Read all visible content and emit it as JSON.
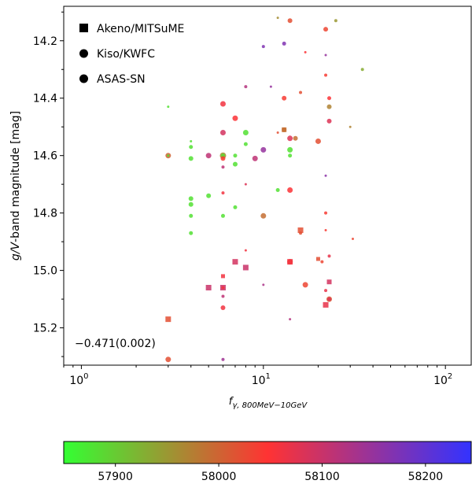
{
  "chart_data": {
    "type": "scatter",
    "title": "",
    "xlabel": "f_{γ,800MeV−10GeV}",
    "xlabel_main": "f",
    "xlabel_sub": "γ, 800MeV−10GeV",
    "ylabel": "g/V-band magnitude [mag]",
    "ylabel_italic": "g/V",
    "ylabel_rest": "-band magnitude [mag]",
    "xscale": "log",
    "xlim": [
      0.8,
      140
    ],
    "ylim": [
      15.33,
      14.08
    ],
    "y_inverted": true,
    "grid": false,
    "x_ticks": [
      {
        "value": 1,
        "label_base": "10",
        "label_exp": "0"
      },
      {
        "value": 10,
        "label_base": "10",
        "label_exp": "1"
      },
      {
        "value": 100,
        "label_base": "10",
        "label_exp": "2"
      }
    ],
    "y_ticks": [
      {
        "value": 14.2,
        "label": "14.2"
      },
      {
        "value": 14.4,
        "label": "14.4"
      },
      {
        "value": 14.6,
        "label": "14.6"
      },
      {
        "value": 14.8,
        "label": "14.8"
      },
      {
        "value": 15.0,
        "label": "15.0"
      },
      {
        "value": 15.2,
        "label": "15.2"
      }
    ],
    "annotation": "−0.471(0.002)",
    "legend": {
      "position": "top-left",
      "entries": [
        {
          "label": "Akeno/MITSuME",
          "marker": "square"
        },
        {
          "label": "Kiso/KWFC",
          "marker": "circle"
        },
        {
          "label": "ASAS-SN",
          "marker": "circle"
        }
      ]
    },
    "colorbar": {
      "orientation": "horizontal",
      "range": [
        57850,
        58245
      ],
      "colors": [
        "#33ff33",
        "#ff3333",
        "#3333ff"
      ],
      "ticks": [
        {
          "value": 57900,
          "label": "57900"
        },
        {
          "value": 58000,
          "label": "58000"
        },
        {
          "value": 58100,
          "label": "58100"
        },
        {
          "value": 58200,
          "label": "58200"
        }
      ]
    },
    "points": [
      {
        "x": 3.0,
        "y": 15.17,
        "t": 58020,
        "m": "s",
        "size": 7
      },
      {
        "x": 3.0,
        "y": 15.31,
        "t": 58020,
        "m": "c",
        "size": 7
      },
      {
        "x": 3.0,
        "y": 14.6,
        "t": 58000,
        "m": "c",
        "size": 7
      },
      {
        "x": 3.0,
        "y": 14.43,
        "t": 57880,
        "m": "c",
        "size": 3
      },
      {
        "x": 3.0,
        "y": 14.6,
        "t": 57880,
        "m": "c",
        "size": 3
      },
      {
        "x": 4.0,
        "y": 14.55,
        "t": 57880,
        "m": "c",
        "size": 3
      },
      {
        "x": 4.0,
        "y": 14.57,
        "t": 57880,
        "m": "c",
        "size": 5
      },
      {
        "x": 4.0,
        "y": 14.61,
        "t": 57880,
        "m": "c",
        "size": 6
      },
      {
        "x": 4.0,
        "y": 14.75,
        "t": 57880,
        "m": "c",
        "size": 6
      },
      {
        "x": 4.0,
        "y": 14.77,
        "t": 57880,
        "m": "c",
        "size": 6
      },
      {
        "x": 4.0,
        "y": 14.81,
        "t": 57880,
        "m": "c",
        "size": 5
      },
      {
        "x": 4.0,
        "y": 14.87,
        "t": 57880,
        "m": "c",
        "size": 5
      },
      {
        "x": 5.0,
        "y": 14.6,
        "t": 58110,
        "m": "c",
        "size": 7
      },
      {
        "x": 5.0,
        "y": 14.74,
        "t": 57880,
        "m": "c",
        "size": 6
      },
      {
        "x": 5.0,
        "y": 15.06,
        "t": 58100,
        "m": "s",
        "size": 7
      },
      {
        "x": 6.0,
        "y": 14.42,
        "t": 58060,
        "m": "c",
        "size": 7
      },
      {
        "x": 6.0,
        "y": 14.52,
        "t": 58090,
        "m": "c",
        "size": 7
      },
      {
        "x": 6.0,
        "y": 14.6,
        "t": 57960,
        "m": "c",
        "size": 8
      },
      {
        "x": 6.0,
        "y": 14.6,
        "t": 57880,
        "m": "c",
        "size": 5
      },
      {
        "x": 6.0,
        "y": 14.61,
        "t": 58040,
        "m": "c",
        "size": 6
      },
      {
        "x": 6.0,
        "y": 14.64,
        "t": 58110,
        "m": "c",
        "size": 4
      },
      {
        "x": 6.0,
        "y": 14.73,
        "t": 58060,
        "m": "c",
        "size": 4
      },
      {
        "x": 6.0,
        "y": 14.81,
        "t": 57880,
        "m": "c",
        "size": 5
      },
      {
        "x": 6.0,
        "y": 15.02,
        "t": 58060,
        "m": "s",
        "size": 5
      },
      {
        "x": 6.0,
        "y": 15.06,
        "t": 58100,
        "m": "s",
        "size": 7
      },
      {
        "x": 6.0,
        "y": 15.06,
        "t": 58060,
        "m": "c",
        "size": 4
      },
      {
        "x": 6.0,
        "y": 15.09,
        "t": 58110,
        "m": "c",
        "size": 4
      },
      {
        "x": 6.0,
        "y": 15.13,
        "t": 58060,
        "m": "c",
        "size": 6
      },
      {
        "x": 6.0,
        "y": 15.31,
        "t": 58140,
        "m": "c",
        "size": 4
      },
      {
        "x": 7.0,
        "y": 14.47,
        "t": 58050,
        "m": "c",
        "size": 7
      },
      {
        "x": 7.0,
        "y": 14.6,
        "t": 57880,
        "m": "c",
        "size": 5
      },
      {
        "x": 7.0,
        "y": 14.63,
        "t": 57880,
        "m": "c",
        "size": 6
      },
      {
        "x": 7.0,
        "y": 14.78,
        "t": 57880,
        "m": "c",
        "size": 5
      },
      {
        "x": 7.0,
        "y": 14.97,
        "t": 58090,
        "m": "s",
        "size": 7
      },
      {
        "x": 8.0,
        "y": 14.36,
        "t": 58120,
        "m": "c",
        "size": 4
      },
      {
        "x": 8.0,
        "y": 14.52,
        "t": 57880,
        "m": "c",
        "size": 7
      },
      {
        "x": 8.0,
        "y": 14.56,
        "t": 57880,
        "m": "c",
        "size": 5
      },
      {
        "x": 8.0,
        "y": 14.7,
        "t": 58080,
        "m": "c",
        "size": 3
      },
      {
        "x": 8.0,
        "y": 14.93,
        "t": 58060,
        "m": "c",
        "size": 3
      },
      {
        "x": 8.0,
        "y": 14.99,
        "t": 58100,
        "m": "s",
        "size": 7
      },
      {
        "x": 9.0,
        "y": 14.61,
        "t": 58110,
        "m": "c",
        "size": 7
      },
      {
        "x": 10.0,
        "y": 14.22,
        "t": 58170,
        "m": "c",
        "size": 4
      },
      {
        "x": 10.0,
        "y": 14.58,
        "t": 58150,
        "m": "c",
        "size": 7
      },
      {
        "x": 10.0,
        "y": 14.81,
        "t": 57990,
        "m": "c",
        "size": 7
      },
      {
        "x": 10.0,
        "y": 15.05,
        "t": 58130,
        "m": "c",
        "size": 3
      },
      {
        "x": 11.0,
        "y": 14.36,
        "t": 58150,
        "m": "c",
        "size": 3
      },
      {
        "x": 12.0,
        "y": 14.12,
        "t": 57960,
        "m": "c",
        "size": 3
      },
      {
        "x": 12.0,
        "y": 14.52,
        "t": 58020,
        "m": "c",
        "size": 3
      },
      {
        "x": 12.0,
        "y": 14.72,
        "t": 57880,
        "m": "c",
        "size": 5
      },
      {
        "x": 13.0,
        "y": 14.21,
        "t": 58170,
        "m": "c",
        "size": 5
      },
      {
        "x": 13.0,
        "y": 14.4,
        "t": 58040,
        "m": "c",
        "size": 6
      },
      {
        "x": 13.0,
        "y": 14.51,
        "t": 57990,
        "m": "c",
        "size": 6
      },
      {
        "x": 13.0,
        "y": 14.51,
        "t": 57990,
        "m": "s",
        "size": 6
      },
      {
        "x": 14.0,
        "y": 14.13,
        "t": 58020,
        "m": "c",
        "size": 6
      },
      {
        "x": 14.0,
        "y": 14.54,
        "t": 58080,
        "m": "c",
        "size": 7
      },
      {
        "x": 14.0,
        "y": 14.58,
        "t": 57880,
        "m": "c",
        "size": 7
      },
      {
        "x": 14.0,
        "y": 14.6,
        "t": 57880,
        "m": "c",
        "size": 5
      },
      {
        "x": 14.0,
        "y": 14.72,
        "t": 58050,
        "m": "c",
        "size": 7
      },
      {
        "x": 14.0,
        "y": 14.97,
        "t": 58040,
        "m": "c",
        "size": 7
      },
      {
        "x": 14.0,
        "y": 14.97,
        "t": 58060,
        "m": "s",
        "size": 7
      },
      {
        "x": 14.0,
        "y": 15.17,
        "t": 58120,
        "m": "c",
        "size": 3
      },
      {
        "x": 15.0,
        "y": 14.54,
        "t": 57990,
        "m": "c",
        "size": 6
      },
      {
        "x": 16.0,
        "y": 14.38,
        "t": 58020,
        "m": "c",
        "size": 4
      },
      {
        "x": 16.0,
        "y": 14.86,
        "t": 58020,
        "m": "s",
        "size": 7
      },
      {
        "x": 16.0,
        "y": 14.87,
        "t": 58020,
        "m": "c",
        "size": 4
      },
      {
        "x": 17.0,
        "y": 14.24,
        "t": 58050,
        "m": "c",
        "size": 3
      },
      {
        "x": 17.0,
        "y": 15.05,
        "t": 58030,
        "m": "c",
        "size": 7
      },
      {
        "x": 20.0,
        "y": 14.55,
        "t": 58020,
        "m": "c",
        "size": 7
      },
      {
        "x": 20.0,
        "y": 14.96,
        "t": 58020,
        "m": "s",
        "size": 5
      },
      {
        "x": 21.0,
        "y": 14.97,
        "t": 58030,
        "m": "c",
        "size": 4
      },
      {
        "x": 22.0,
        "y": 14.16,
        "t": 58030,
        "m": "c",
        "size": 6
      },
      {
        "x": 22.0,
        "y": 14.25,
        "t": 58150,
        "m": "c",
        "size": 3
      },
      {
        "x": 22.0,
        "y": 14.32,
        "t": 58040,
        "m": "c",
        "size": 4
      },
      {
        "x": 22.0,
        "y": 14.67,
        "t": 58160,
        "m": "c",
        "size": 3
      },
      {
        "x": 22.0,
        "y": 14.8,
        "t": 58040,
        "m": "c",
        "size": 4
      },
      {
        "x": 22.0,
        "y": 14.86,
        "t": 58040,
        "m": "c",
        "size": 3
      },
      {
        "x": 22.0,
        "y": 15.07,
        "t": 58070,
        "m": "c",
        "size": 4
      },
      {
        "x": 22.0,
        "y": 15.12,
        "t": 58070,
        "m": "s",
        "size": 7
      },
      {
        "x": 23.0,
        "y": 14.4,
        "t": 58050,
        "m": "c",
        "size": 5
      },
      {
        "x": 23.0,
        "y": 14.43,
        "t": 57970,
        "m": "c",
        "size": 6
      },
      {
        "x": 23.0,
        "y": 14.48,
        "t": 58080,
        "m": "c",
        "size": 6
      },
      {
        "x": 23.0,
        "y": 14.95,
        "t": 58070,
        "m": "c",
        "size": 4
      },
      {
        "x": 23.0,
        "y": 15.04,
        "t": 58090,
        "m": "s",
        "size": 6
      },
      {
        "x": 23.0,
        "y": 15.1,
        "t": 58010,
        "m": "c",
        "size": 7
      },
      {
        "x": 23.0,
        "y": 15.1,
        "t": 58080,
        "m": "c",
        "size": 5
      },
      {
        "x": 25.0,
        "y": 14.13,
        "t": 57950,
        "m": "c",
        "size": 4
      },
      {
        "x": 30.0,
        "y": 14.5,
        "t": 57970,
        "m": "c",
        "size": 3
      },
      {
        "x": 31.0,
        "y": 14.89,
        "t": 58030,
        "m": "c",
        "size": 3
      },
      {
        "x": 35.0,
        "y": 14.3,
        "t": 57930,
        "m": "c",
        "size": 4
      }
    ]
  }
}
